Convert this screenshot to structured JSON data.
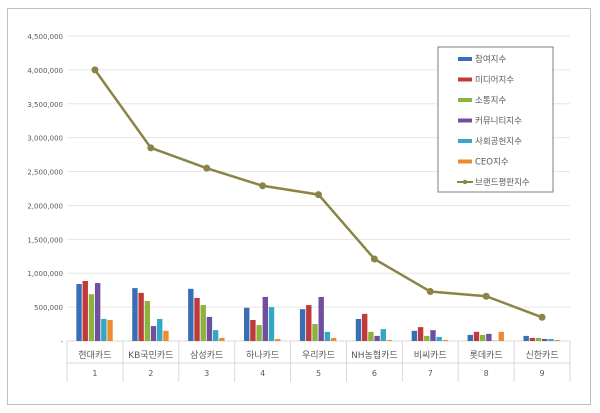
{
  "chart_data": {
    "type": "bar",
    "title": "",
    "xlabel": "",
    "ylabel": "",
    "ylim": [
      0,
      4500000
    ],
    "yticks": [
      "-",
      "500,000",
      "1,000,000",
      "1,500,000",
      "2,000,000",
      "2,500,000",
      "3,000,000",
      "3,500,000",
      "4,000,000",
      "4,500,000"
    ],
    "grid": true,
    "legend_position": "top-right",
    "categories": [
      "현대카드",
      "KB국민카드",
      "삼성카드",
      "하나카드",
      "우리카드",
      "NH농협카드",
      "비씨카드",
      "롯데카드",
      "신한카드"
    ],
    "ranks": [
      "1",
      "2",
      "3",
      "4",
      "5",
      "6",
      "7",
      "8",
      "9"
    ],
    "series": [
      {
        "name": "참여지수",
        "color": "#3a6db5",
        "type": "bar",
        "values": [
          840000,
          780000,
          770000,
          490000,
          470000,
          325000,
          150000,
          90000,
          75000
        ]
      },
      {
        "name": "미디어지수",
        "color": "#c0393b",
        "type": "bar",
        "values": [
          885000,
          710000,
          635000,
          310000,
          530000,
          400000,
          205000,
          135000,
          45000
        ]
      },
      {
        "name": "소통지수",
        "color": "#8db33f",
        "type": "bar",
        "values": [
          690000,
          590000,
          530000,
          235000,
          250000,
          135000,
          75000,
          90000,
          45000
        ]
      },
      {
        "name": "커뮤니티지수",
        "color": "#6f4f9e",
        "type": "bar",
        "values": [
          855000,
          220000,
          355000,
          650000,
          650000,
          75000,
          160000,
          105000,
          30000
        ]
      },
      {
        "name": "사회공헌지수",
        "color": "#33a7c6",
        "type": "bar",
        "values": [
          325000,
          325000,
          160000,
          500000,
          135000,
          175000,
          60000,
          5000,
          30000
        ]
      },
      {
        "name": "CEO지수",
        "color": "#ef8a2e",
        "type": "bar",
        "values": [
          310000,
          150000,
          45000,
          30000,
          45000,
          15000,
          15000,
          135000,
          15000
        ]
      },
      {
        "name": "브랜드평판지수",
        "color": "#8b8446",
        "type": "line",
        "values": [
          4000000,
          2850000,
          2550000,
          2290000,
          2160000,
          1210000,
          730000,
          660000,
          350000
        ]
      }
    ]
  }
}
